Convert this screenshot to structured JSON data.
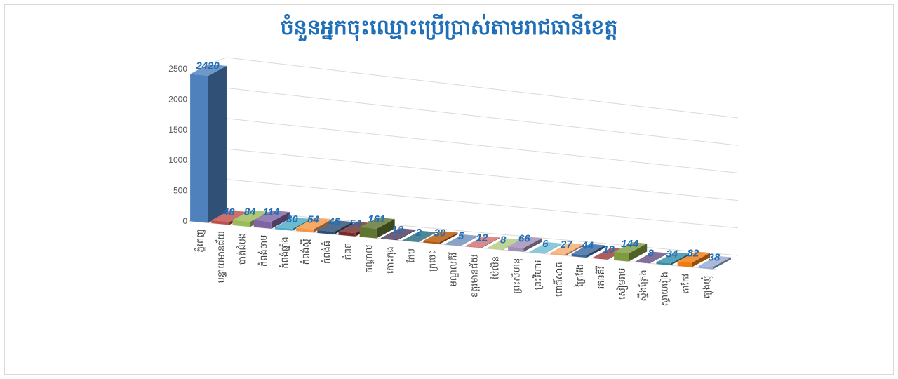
{
  "chart_data": {
    "type": "bar",
    "title": "ចំនួនអ្នកចុះឈ្មោះប្រើប្រាស់តាមរាជធានីខេត្ត",
    "categories": [
      "ភ្នំពេញ",
      "បន្ទាយមានជ័យ",
      "បាត់ដំបង",
      "កំពង់ចាម",
      "កំពង់ឆ្នាំង",
      "កំពង់ស្ពឺ",
      "កំពង់ធំ",
      "កំពត",
      "កណ្ដាល",
      "កោះកុង",
      "កែប",
      "ក្រចេះ",
      "មណ្ឌលគិរី",
      "ឧត្ដរមានជ័យ",
      "ប៉ៃលិន",
      "ព្រះសីហនុ",
      "ព្រះវិហារ",
      "ពោធិ៍សាត់",
      "ព្រៃវែង",
      "រតនគិរី",
      "សៀមរាប",
      "ស្ទឹងត្រែង",
      "ស្វាយរៀង",
      "តាកែវ",
      "ត្បូងឃ្មុំ"
    ],
    "values": [
      2420,
      48,
      84,
      114,
      30,
      54,
      45,
      54,
      161,
      12,
      2,
      30,
      5,
      12,
      8,
      66,
      6,
      27,
      44,
      10,
      144,
      8,
      34,
      82,
      38
    ],
    "y_ticks": [
      "0",
      "500",
      "1000",
      "1500",
      "2000",
      "2500"
    ],
    "ylim": [
      0,
      2500
    ],
    "grid": true,
    "legend": "none",
    "colors": [
      "#4f81bd",
      "#c0504d",
      "#9bbb59",
      "#8064a2",
      "#4bacc6",
      "#f79646",
      "#2c4d75",
      "#772c2a",
      "#5f7530",
      "#4d3b62",
      "#276a7c",
      "#b65708",
      "#6f8fb8",
      "#d07170",
      "#b3ca7e",
      "#a18fb8",
      "#6fbdd1",
      "#f8ab70",
      "#3a66a0",
      "#9f3b38",
      "#7f9b40",
      "#674f85",
      "#348ea7",
      "#f07c10",
      "#95abd0"
    ]
  }
}
